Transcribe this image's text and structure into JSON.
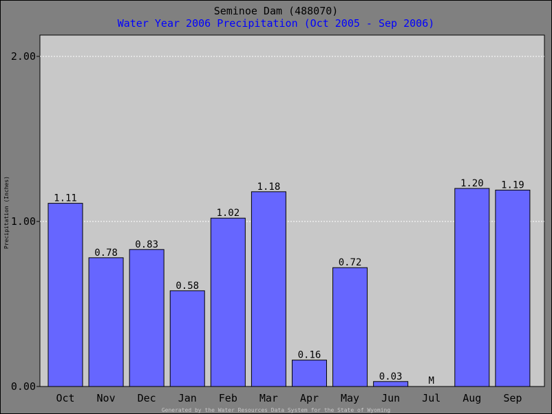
{
  "chart_data": {
    "type": "bar",
    "title": "Seminoe Dam (488070)",
    "subtitle": "Water Year 2006 Precipitation (Oct 2005 - Sep 2006)",
    "ylabel": "Precipitation (Inches)",
    "ylim": [
      0,
      2.2
    ],
    "yticks": [
      "0.00",
      "1.00",
      "2.00"
    ],
    "grid": true,
    "categories": [
      "Oct",
      "Nov",
      "Dec",
      "Jan",
      "Feb",
      "Mar",
      "Apr",
      "May",
      "Jun",
      "Jul",
      "Aug",
      "Sep"
    ],
    "values": [
      1.11,
      0.78,
      0.83,
      0.58,
      1.02,
      1.18,
      0.16,
      0.72,
      0.03,
      null,
      1.2,
      1.19
    ],
    "data_labels": [
      "1.11",
      "0.78",
      "0.83",
      "0.58",
      "1.02",
      "1.18",
      "0.16",
      "0.72",
      "0.03",
      "M",
      "1.20",
      "1.19"
    ],
    "missing_categories": [
      "Jul"
    ],
    "colors": {
      "bar": "#6666ff",
      "title": "#000000",
      "subtitle": "#0000ff",
      "missing": "#ff0000",
      "plot_bg": "#c8c8c8",
      "frame_bg": "#808080"
    }
  },
  "footer": "Generated by the Water Resources Data System for the State of Wyoming"
}
